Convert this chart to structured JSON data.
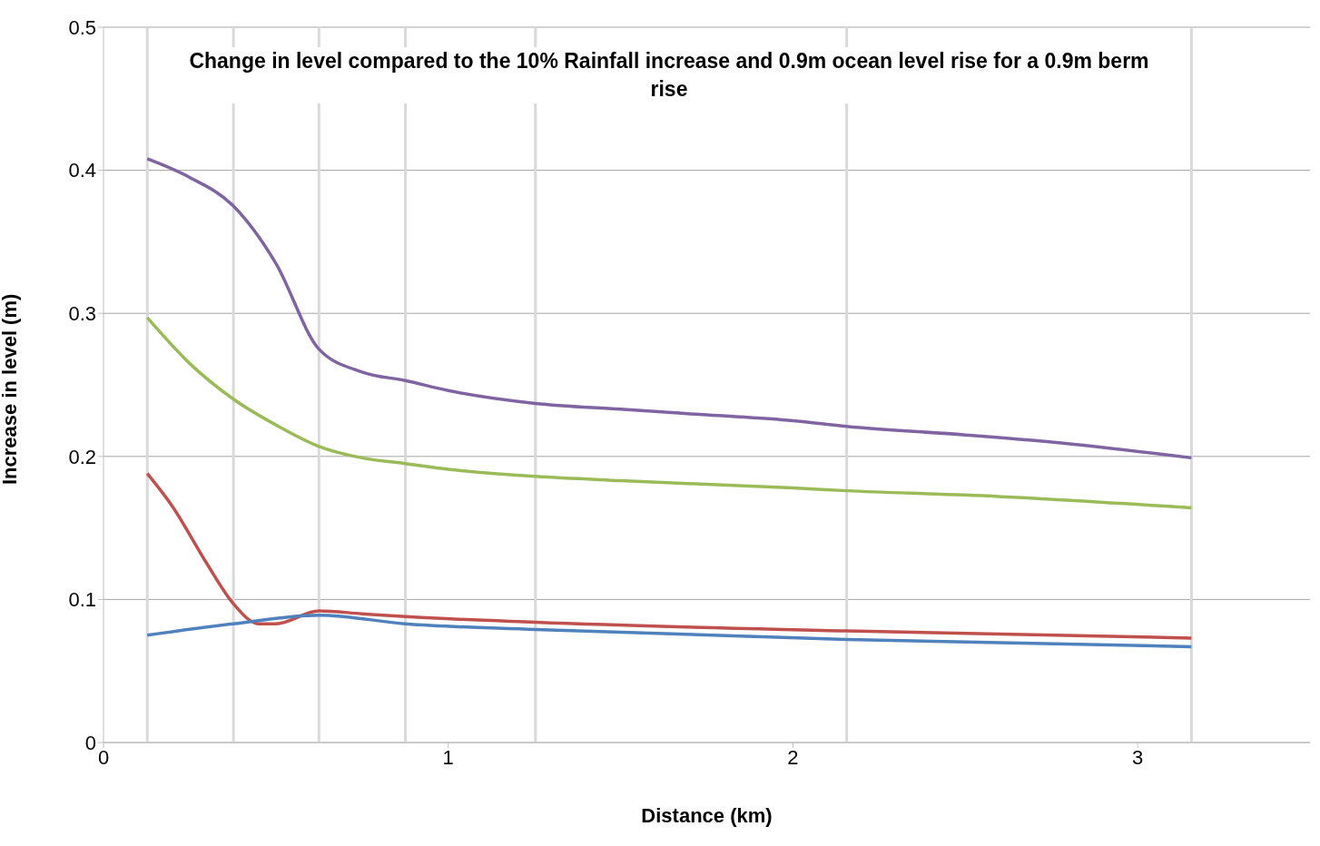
{
  "chart_data": {
    "type": "line",
    "title": "Change in level compared to the 10% Rainfall increase and 0.9m ocean level rise for a 0.9m berm rise",
    "xlabel": "Distance (km)",
    "ylabel": "Increase in level (m)",
    "xlim": [
      0,
      3.5
    ],
    "xticks": [
      0,
      1,
      2,
      3
    ],
    "ylim": [
      0,
      0.5
    ],
    "yticks": [
      0,
      0.1,
      0.2,
      0.3,
      0.4,
      0.5
    ],
    "grid": "y",
    "marker": "none",
    "line_style": "solid",
    "ref_lines": [
      {
        "axis": "x",
        "value": 0.127,
        "color": "#d9d9d9"
      },
      {
        "axis": "x",
        "value": 0.377,
        "color": "#d9d9d9"
      },
      {
        "axis": "x",
        "value": 0.625,
        "color": "#d9d9d9"
      },
      {
        "axis": "x",
        "value": 0.876,
        "color": "#d9d9d9"
      },
      {
        "axis": "x",
        "value": 1.253,
        "color": "#d9d9d9"
      },
      {
        "axis": "x",
        "value": 2.156,
        "color": "#d9d9d9"
      },
      {
        "axis": "x",
        "value": 3.156,
        "color": "#d9d9d9"
      }
    ],
    "series": [
      {
        "color": "#8064a2",
        "x": [
          0.127,
          0.25,
          0.377,
          0.5,
          0.625,
          0.75,
          0.876,
          1.0,
          1.253,
          1.5,
          1.75,
          2.0,
          2.156,
          2.5,
          2.75,
          3.156
        ],
        "values": [
          0.408,
          0.395,
          0.375,
          0.335,
          0.275,
          0.259,
          0.253,
          0.246,
          0.237,
          0.233,
          0.229,
          0.225,
          0.221,
          0.215,
          0.21,
          0.199
        ]
      },
      {
        "color": "#9bbb59",
        "x": [
          0.127,
          0.25,
          0.377,
          0.5,
          0.625,
          0.75,
          0.876,
          1.0,
          1.253,
          1.5,
          2.0,
          2.156,
          2.5,
          3.156
        ],
        "values": [
          0.297,
          0.265,
          0.24,
          0.222,
          0.207,
          0.199,
          0.195,
          0.191,
          0.186,
          0.183,
          0.178,
          0.176,
          0.173,
          0.164
        ]
      },
      {
        "color": "#c0504d",
        "x": [
          0.127,
          0.2,
          0.3,
          0.377,
          0.45,
          0.5,
          0.625,
          0.75,
          0.876,
          1.253,
          2.156,
          3.156
        ],
        "values": [
          0.188,
          0.165,
          0.125,
          0.097,
          0.083,
          0.083,
          0.092,
          0.09,
          0.088,
          0.084,
          0.078,
          0.073
        ]
      },
      {
        "color": "#4f81bd",
        "x": [
          0.127,
          0.377,
          0.625,
          0.876,
          1.253,
          2.156,
          3.156
        ],
        "values": [
          0.075,
          0.083,
          0.089,
          0.083,
          0.079,
          0.072,
          0.067
        ]
      }
    ]
  }
}
